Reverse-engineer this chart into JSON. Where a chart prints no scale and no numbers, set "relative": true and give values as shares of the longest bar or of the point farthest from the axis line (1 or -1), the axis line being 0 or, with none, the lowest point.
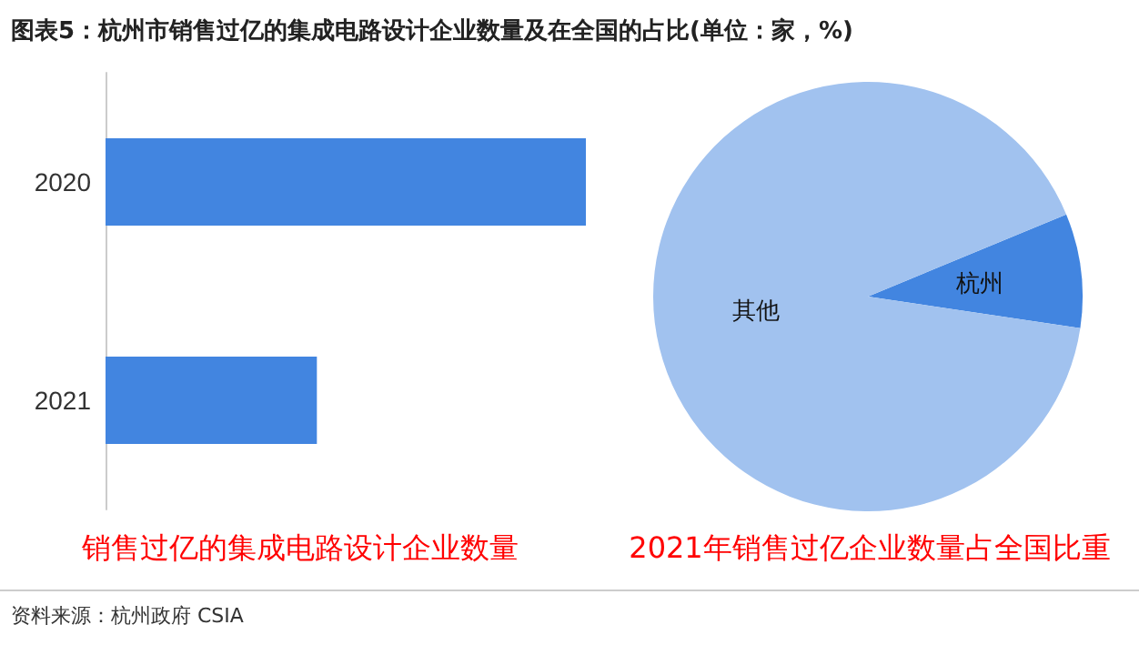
{
  "chart_data": [
    {
      "type": "bar",
      "orientation": "horizontal",
      "relative": true,
      "title": "图表5：杭州市销售过亿的集成电路设计企业数量及在全国的占比(单位：家，%)",
      "subtitle": "销售过亿的集成电路设计企业数量",
      "categories": [
        "2020",
        "2021"
      ],
      "values": [
        1,
        0.44
      ],
      "color": "#4285e0",
      "annotations": [
        "资料来源：杭州政府 CSIA"
      ]
    },
    {
      "type": "pie",
      "subtitle": "2021年销售过亿企业数量占全国比重",
      "categories": [
        "杭州",
        "其他"
      ],
      "values": [
        8.6,
        91.4
      ],
      "colors": [
        "#4285e0",
        "#a1c2ef"
      ]
    }
  ]
}
